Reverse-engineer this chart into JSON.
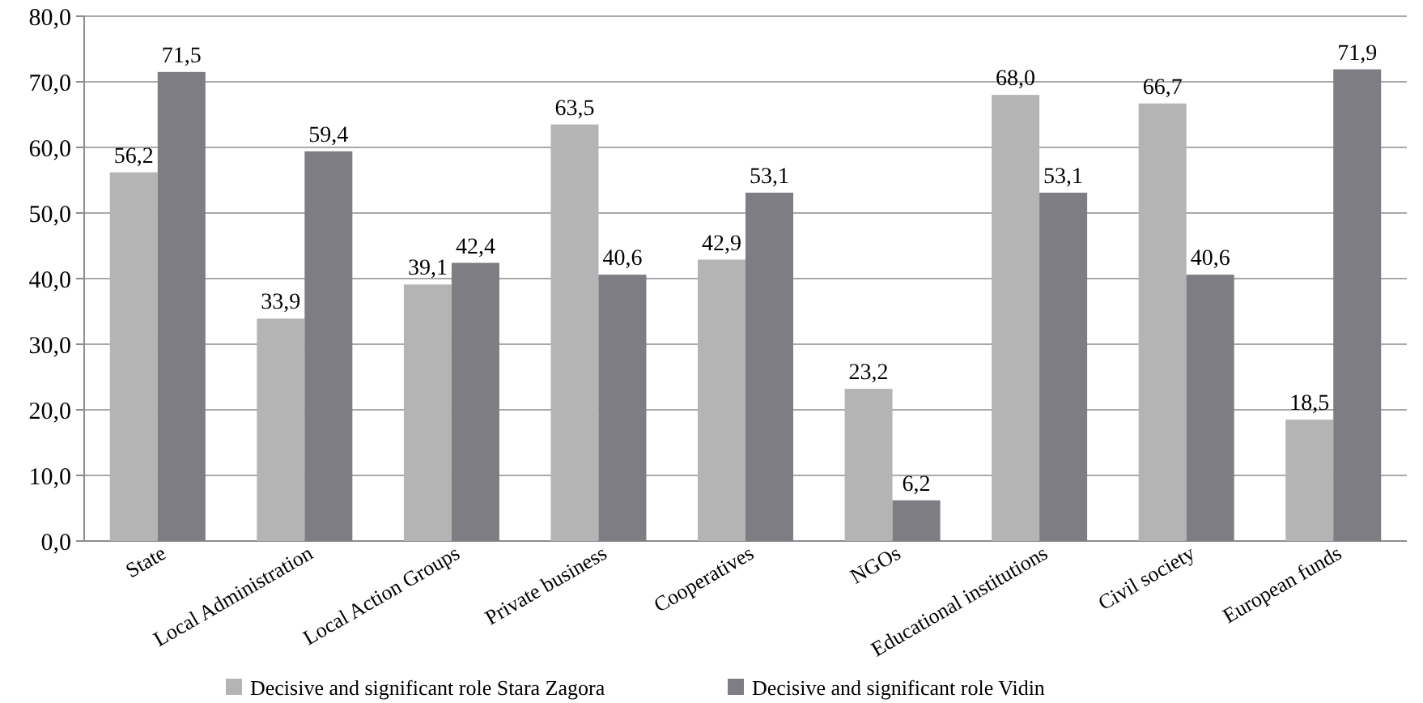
{
  "chart_data": {
    "type": "bar",
    "categories": [
      "State",
      "Local Administration",
      "Local Action Groups",
      "Private business",
      "Cooperatives",
      "NGOs",
      "Educational institutions",
      "Civil society",
      "European funds"
    ],
    "series": [
      {
        "name": "Decisive and significant role Stara Zagora",
        "color": "#b4b4b4",
        "values": [
          56.2,
          33.9,
          39.1,
          63.5,
          42.9,
          23.2,
          68.0,
          66.7,
          18.5
        ],
        "value_labels": [
          "56,2",
          "33,9",
          "39,1",
          "63,5",
          "42,9",
          "23,2",
          "68,0",
          "66,7",
          "18,5"
        ]
      },
      {
        "name": "Decisive and significant role Vidin",
        "color": "#7d7d83",
        "values": [
          71.5,
          59.4,
          42.4,
          40.6,
          53.1,
          6.2,
          53.1,
          40.6,
          71.9
        ],
        "value_labels": [
          "71,5",
          "59,4",
          "42,4",
          "40,6",
          "53,1",
          "6,2",
          "53,1",
          "40,6",
          "71,9"
        ]
      }
    ],
    "ylim": [
      0,
      80
    ],
    "yticks": [
      {
        "value": 0,
        "label": "0,0"
      },
      {
        "value": 10,
        "label": "10,0"
      },
      {
        "value": 20,
        "label": "20,0"
      },
      {
        "value": 30,
        "label": "30,0"
      },
      {
        "value": 40,
        "label": "40,0"
      },
      {
        "value": 50,
        "label": "50,0"
      },
      {
        "value": 60,
        "label": "60,0"
      },
      {
        "value": 70,
        "label": "70,0"
      },
      {
        "value": 80,
        "label": "80,0"
      }
    ],
    "grid": "y",
    "legend": "bottom"
  }
}
